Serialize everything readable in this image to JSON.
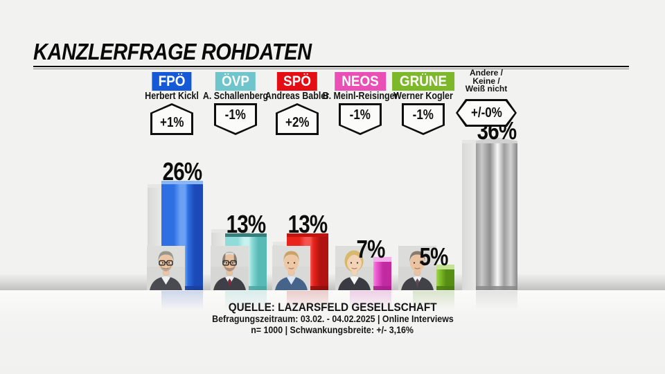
{
  "title": "KANZLERFRAGE ROHDATEN",
  "source": {
    "line1": "QUELLE: LAZARSFELD GESELLSCHAFT",
    "line2": "Befragungszeitraum: 03.02. - 04.02.2025 | Online Interviews",
    "line3": "n= 1000 | Schwankungsbreite: +/- 3,16%"
  },
  "chart_data": {
    "type": "bar",
    "title": "KANZLERFRAGE ROHDATEN",
    "unit": "%",
    "ylim": [
      0,
      40
    ],
    "categories": [
      "FPÖ",
      "ÖVP",
      "SPÖ",
      "NEOS",
      "GRÜNE",
      "Andere / Keine / Weiß nicht"
    ],
    "values": [
      26,
      13,
      13,
      7,
      5,
      36
    ],
    "changes": [
      "+1%",
      "-1%",
      "+2%",
      "-1%",
      "-1%",
      "+/-0%"
    ],
    "columns": [
      {
        "party": "FPÖ",
        "candidate": "Herbert Kickl",
        "value": 26,
        "value_label": "26%",
        "change_label": "+1%",
        "change_value": 1,
        "direction": "up",
        "party_color": "#1659d6",
        "bar": {
          "light": "#6aa1f5",
          "main": "#2e6fe3",
          "dark": "#1b49b8",
          "cap": "#8ab6f8",
          "bottom": "#1a3f9e"
        },
        "avatar": {
          "bg": "#d8d8d6",
          "skin": "#ecc6a4",
          "hair": "#9a958d",
          "suit": "#4a4b50",
          "shirt": "#eef0f2",
          "tie": "",
          "glasses": true,
          "beard": "#a89f93",
          "female": false,
          "bald": false
        }
      },
      {
        "party": "ÖVP",
        "candidate": "A. Schallenberg",
        "value": 13,
        "value_label": "13%",
        "change_label": "-1%",
        "change_value": -1,
        "direction": "down",
        "party_color": "#6fc5cb",
        "bar": {
          "light": "#c6f1ee",
          "main": "#8fdcd8",
          "dark": "#58bab6",
          "cap": "#35807d",
          "bottom": "#4aa7a3"
        },
        "avatar": {
          "bg": "#d6d6d4",
          "skin": "#e9c2a0",
          "hair": "#8c7f72",
          "suit": "#3f3f47",
          "shirt": "#f2f2f2",
          "tie": "#7c2b3a",
          "glasses": true,
          "beard": "#93857a",
          "female": false,
          "bald": true
        }
      },
      {
        "party": "SPÖ",
        "candidate": "Andreas Babler",
        "value": 13,
        "value_label": "13%",
        "change_label": "+2%",
        "change_value": 2,
        "direction": "up",
        "party_color": "#e30d13",
        "bar": {
          "light": "#f4554e",
          "main": "#e8241d",
          "dark": "#b11310",
          "cap": "#c2140f",
          "bottom": "#8f0f0c"
        },
        "avatar": {
          "bg": "#d9d9d7",
          "skin": "#eec8a6",
          "hair": "#c9a365",
          "suit": "#46648a",
          "shirt": "#dbe7f2",
          "tie": "",
          "glasses": false,
          "beard": "",
          "female": false,
          "bald": false
        }
      },
      {
        "party": "NEOS",
        "candidate": "B. Meinl-Reisinger",
        "value": 7,
        "value_label": "7%",
        "change_label": "-1%",
        "change_value": -1,
        "direction": "down",
        "party_color": "#ea4fb6",
        "bar": {
          "light": "#f887e2",
          "main": "#ee58d0",
          "dark": "#c22aa2",
          "cap": "#f6aeea",
          "bottom": "#a81f8c"
        },
        "avatar": {
          "bg": "#d8d8d6",
          "skin": "#f2d3b8",
          "hair": "#d8b86a",
          "suit": "#3a3a42",
          "shirt": "#f4f4f4",
          "tie": "",
          "glasses": false,
          "beard": "",
          "female": true,
          "bald": false
        }
      },
      {
        "party": "GRÜNE",
        "candidate": "Werner Kogler",
        "value": 5,
        "value_label": "5%",
        "change_label": "-1%",
        "change_value": -1,
        "direction": "down",
        "party_color": "#7cb829",
        "bar": {
          "light": "#a2d45c",
          "main": "#84c32e",
          "dark": "#568f14",
          "cap": "#c6e295",
          "bottom": "#4a7d10"
        },
        "avatar": {
          "bg": "#d6d6d4",
          "skin": "#eac3a2",
          "hair": "#877b6d",
          "suit": "#414148",
          "shirt": "#f0f0f0",
          "tie": "#5a4a52",
          "glasses": false,
          "beard": "",
          "female": false,
          "bald": false
        }
      },
      {
        "party": "Andere / Keine / Weiß nicht",
        "header_lines": [
          "Andere /",
          "Keine /",
          "Weiß nicht"
        ],
        "value": 36,
        "value_label": "36%",
        "change_label": "+/-0%",
        "change_value": 0,
        "direction": "neutral",
        "party_color": "",
        "metallic": true,
        "bar": {
          "light": "#f8f8f8",
          "main": "#b0b0b0",
          "dark": "#8a8a8a",
          "cap": "#d0d0d0",
          "bottom": "#8a8a8a",
          "palette": [
            "#9b9b9b",
            "#c9c9c9",
            "#8f8f8f",
            "#f8f8f8",
            "#9e9e9e",
            "#d2d2d2",
            "#868686"
          ]
        },
        "avatar": null
      }
    ]
  }
}
